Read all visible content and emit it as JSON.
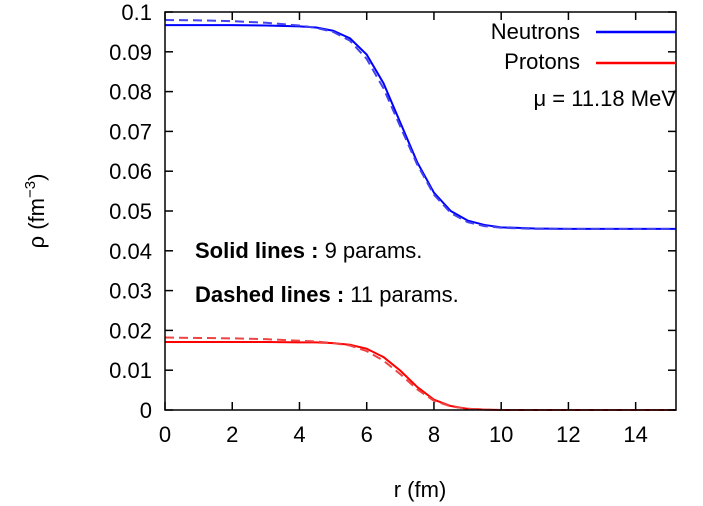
{
  "chart_data": {
    "type": "line",
    "xlabel": "r (fm)",
    "ylabel": "ρ (fm",
    "ylabel_sup": "−3",
    "ylabel_close": ")",
    "xlim": [
      0,
      15.2
    ],
    "ylim": [
      0,
      0.1
    ],
    "x_ticks": [
      0,
      2,
      4,
      6,
      8,
      10,
      12,
      14
    ],
    "x_tick_labels": [
      "0",
      "2",
      "4",
      "6",
      "8",
      "10",
      "12",
      "14"
    ],
    "y_ticks": [
      0,
      0.01,
      0.02,
      0.03,
      0.04,
      0.05,
      0.06,
      0.07,
      0.08,
      0.09,
      0.1
    ],
    "y_tick_labels": [
      "0",
      "0.01",
      "0.02",
      "0.03",
      "0.04",
      "0.05",
      "0.06",
      "0.07",
      "0.08",
      "0.09",
      "0.1"
    ],
    "grid": false,
    "legend_position": "top-right",
    "legend": [
      {
        "label": "Neutrons",
        "color": "#0000ff"
      },
      {
        "label": "Protons",
        "color": "#ff0000"
      }
    ],
    "legend_note": "μ = 11.18 MeV",
    "annotations": [
      {
        "bold": "Solid lines :",
        "rest": " 9 params."
      },
      {
        "bold": "Dashed lines :",
        "rest": " 11 params."
      }
    ],
    "series": [
      {
        "name": "Neutrons",
        "color": "#0000ff",
        "style": "solid",
        "x": [
          0,
          1,
          2,
          3,
          4,
          4.5,
          5,
          5.5,
          6,
          6.5,
          7,
          7.5,
          8,
          8.5,
          9,
          9.5,
          10,
          11,
          12,
          13,
          14,
          15.2
        ],
        "y": [
          0.0967,
          0.0967,
          0.0967,
          0.0966,
          0.0964,
          0.0961,
          0.0953,
          0.0934,
          0.0893,
          0.0821,
          0.0722,
          0.0623,
          0.0546,
          0.05,
          0.0476,
          0.0465,
          0.0459,
          0.0456,
          0.0455,
          0.0455,
          0.0455,
          0.0455
        ]
      },
      {
        "name": "Neutrons",
        "color": "#4444ee",
        "style": "dashed",
        "x": [
          0,
          1,
          2,
          3,
          4,
          4.5,
          5,
          5.5,
          6,
          6.5,
          7,
          7.5,
          8,
          8.5,
          9,
          9.5,
          10,
          11,
          12,
          13,
          14,
          15.2
        ],
        "y": [
          0.098,
          0.0979,
          0.0977,
          0.0973,
          0.0966,
          0.096,
          0.095,
          0.0928,
          0.0882,
          0.0808,
          0.0712,
          0.0617,
          0.0541,
          0.0495,
          0.0472,
          0.0462,
          0.0458,
          0.0455,
          0.0455,
          0.0455,
          0.0455,
          0.0455
        ]
      },
      {
        "name": "Protons",
        "color": "#ff0000",
        "style": "solid",
        "x": [
          0,
          1,
          2,
          3,
          4,
          4.5,
          5,
          5.5,
          6,
          6.5,
          7,
          7.5,
          8,
          8.5,
          9,
          9.5,
          10,
          11,
          12,
          13,
          14,
          15.2
        ],
        "y": [
          0.0171,
          0.0171,
          0.0171,
          0.0171,
          0.017,
          0.017,
          0.0168,
          0.0164,
          0.0154,
          0.0133,
          0.0099,
          0.0058,
          0.0026,
          0.001,
          0.0003,
          0.0001,
          0.0,
          0.0,
          0.0,
          0.0,
          0.0,
          0.0
        ]
      },
      {
        "name": "Protons",
        "color": "#ee4444",
        "style": "dashed",
        "x": [
          0,
          1,
          2,
          3,
          4,
          4.5,
          5,
          5.5,
          6,
          6.5,
          7,
          7.5,
          8,
          8.5,
          9,
          9.5,
          10,
          11,
          12,
          13,
          14,
          15.2
        ],
        "y": [
          0.0182,
          0.0181,
          0.018,
          0.0178,
          0.0174,
          0.0172,
          0.0168,
          0.0162,
          0.0148,
          0.0124,
          0.009,
          0.0052,
          0.0023,
          0.0009,
          0.0003,
          0.0001,
          0.0,
          0.0,
          0.0,
          0.0,
          0.0,
          0.0
        ]
      }
    ]
  }
}
